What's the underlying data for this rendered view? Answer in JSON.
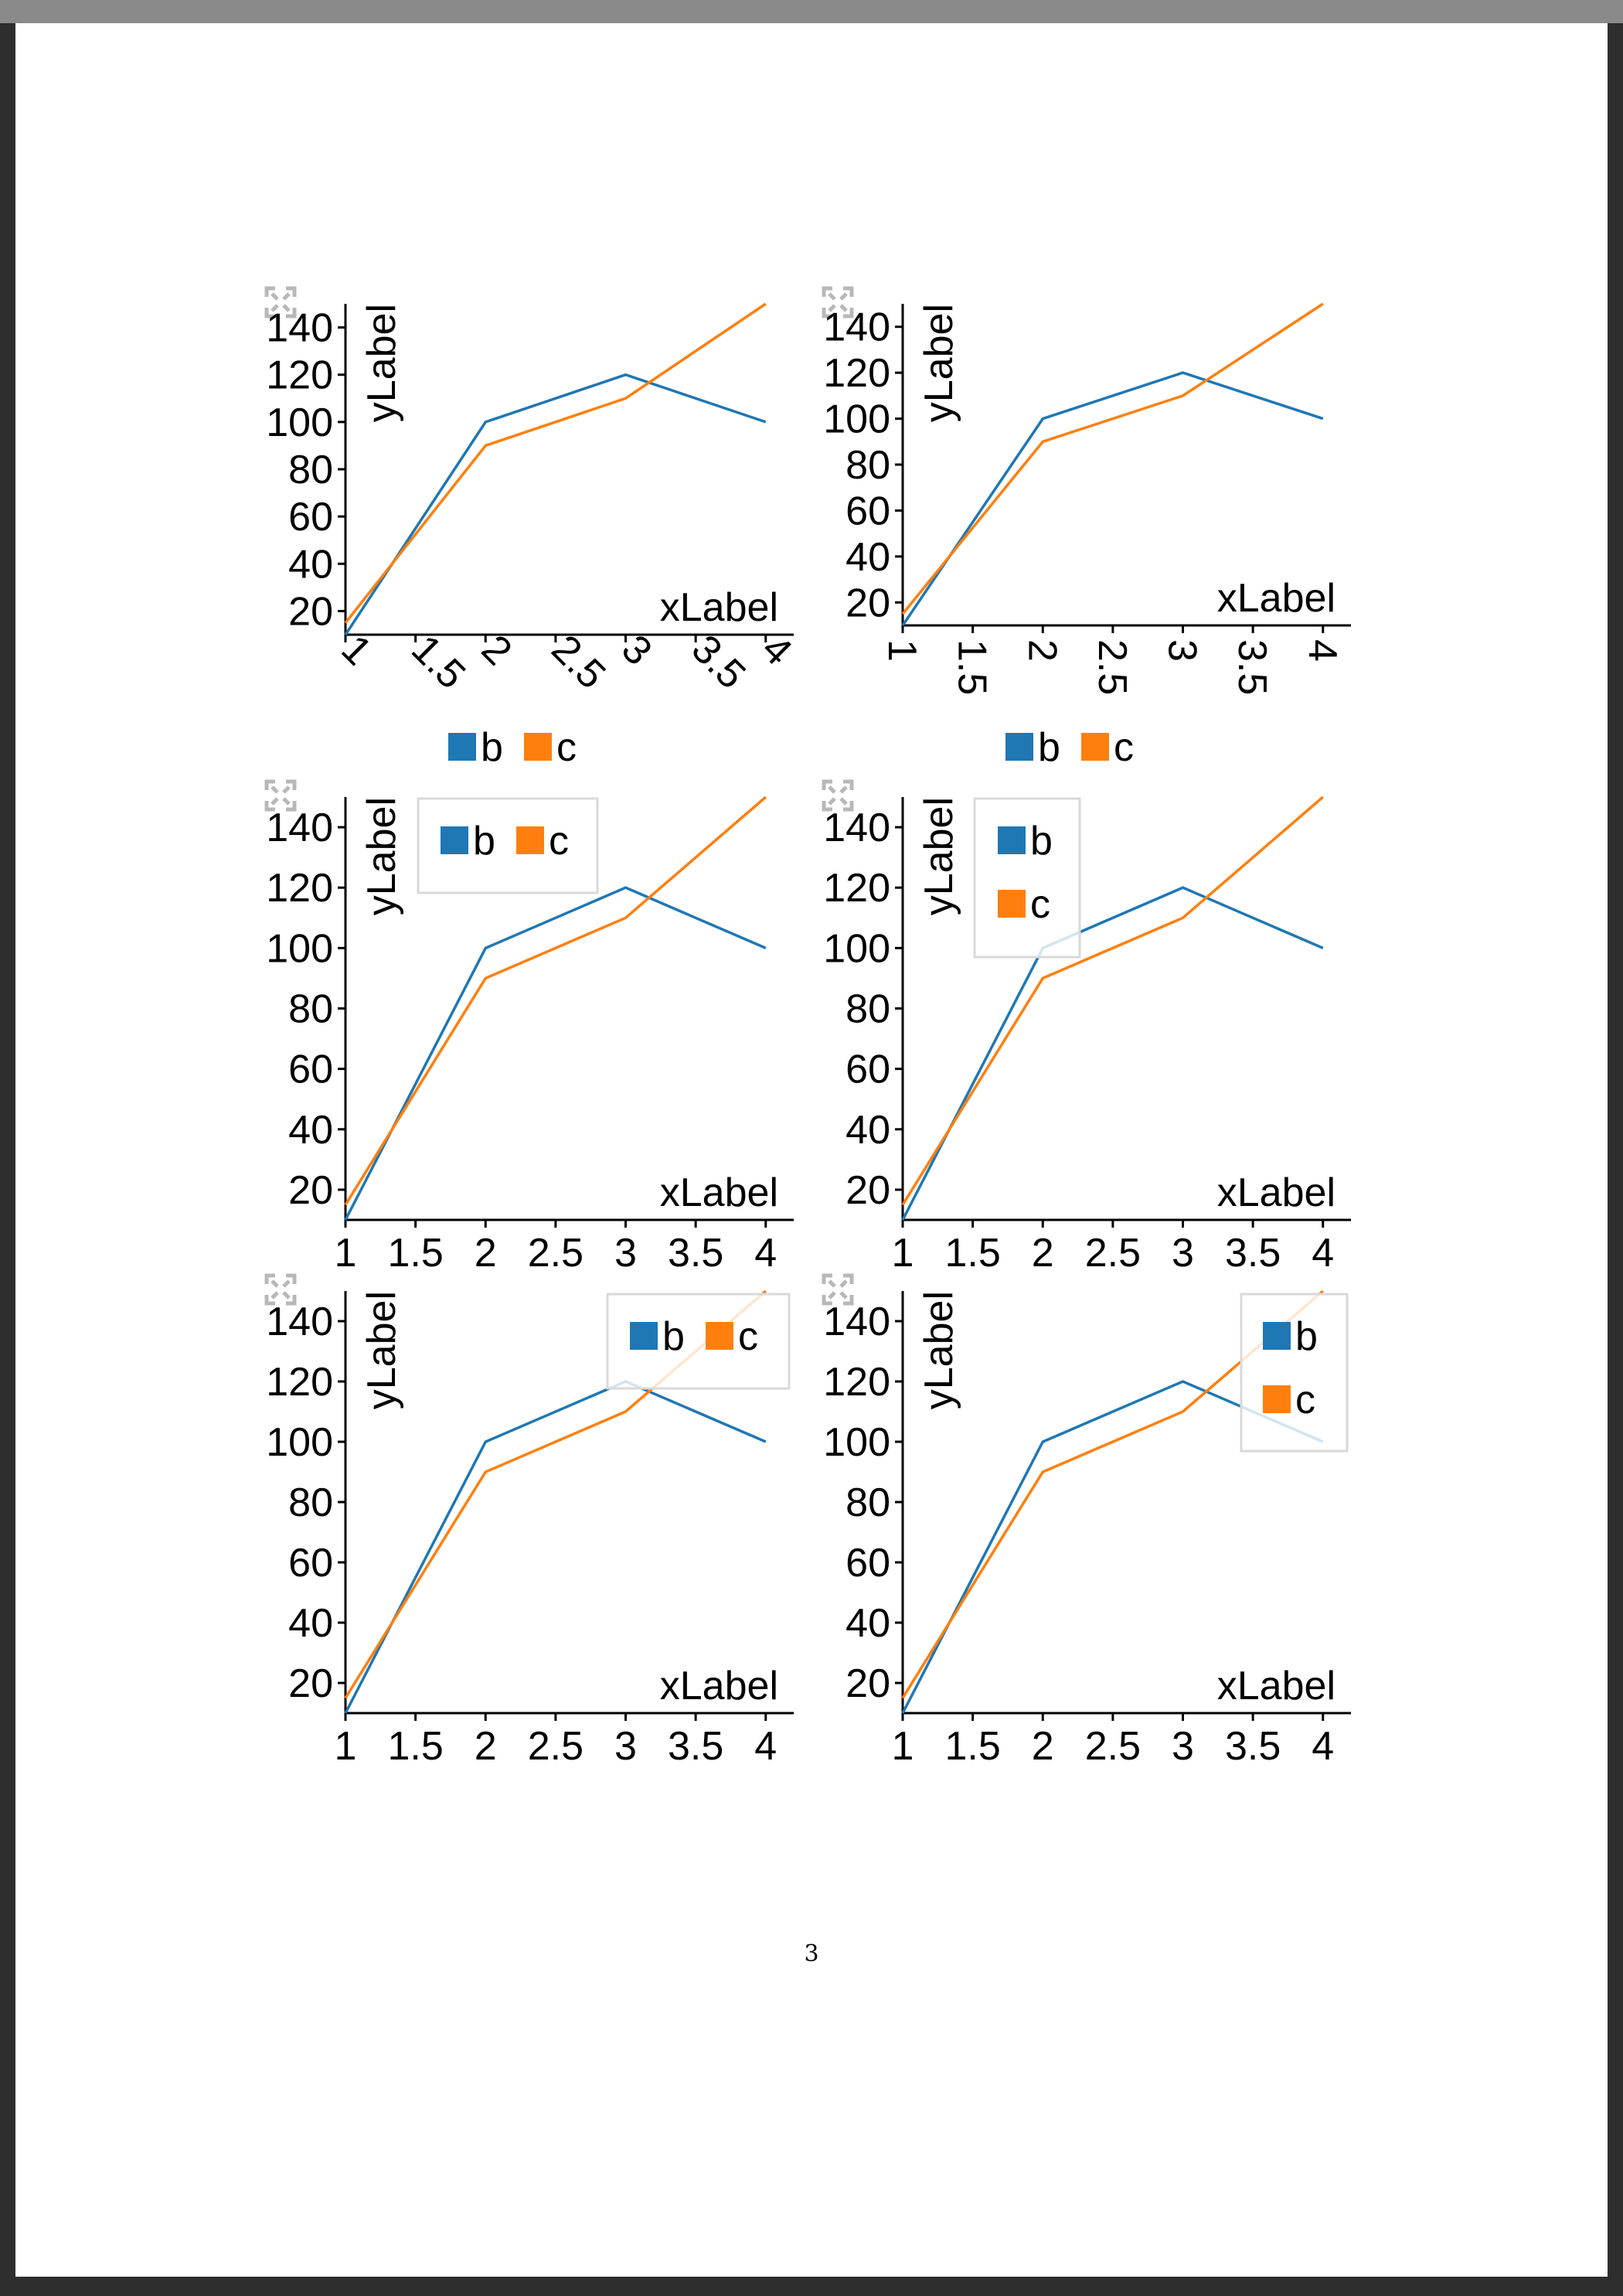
{
  "page": {
    "number": "3"
  },
  "colors": {
    "b": "#1f77b4",
    "c": "#ff7f0e",
    "legend_border": "#d9d9d9",
    "expand_icon": "#b8b8b8"
  },
  "chart_data": [
    {
      "type": "line",
      "xlabel": "xLabel",
      "ylabel": "yLabel",
      "x": [
        1,
        2,
        3,
        4
      ],
      "series": [
        {
          "name": "b",
          "values": [
            10,
            100,
            120,
            100
          ]
        },
        {
          "name": "c",
          "values": [
            15,
            90,
            110,
            150
          ]
        }
      ],
      "xticks": [
        "1",
        "1.5",
        "2",
        "2.5",
        "3",
        "3.5",
        "4"
      ],
      "yticks": [
        "20",
        "40",
        "60",
        "80",
        "100",
        "120",
        "140"
      ],
      "xlim": [
        1,
        4.2
      ],
      "ylim": [
        10,
        150
      ],
      "xtick_rotation": 45,
      "legend": "below-horizontal",
      "grid": false
    },
    {
      "type": "line",
      "xlabel": "xLabel",
      "ylabel": "yLabel",
      "x": [
        1,
        2,
        3,
        4
      ],
      "series": [
        {
          "name": "b",
          "values": [
            10,
            100,
            120,
            100
          ]
        },
        {
          "name": "c",
          "values": [
            15,
            90,
            110,
            150
          ]
        }
      ],
      "xticks": [
        "1",
        "1.5",
        "2",
        "2.5",
        "3",
        "3.5",
        "4"
      ],
      "yticks": [
        "20",
        "40",
        "60",
        "80",
        "100",
        "120",
        "140"
      ],
      "xlim": [
        1,
        4.2
      ],
      "ylim": [
        10,
        150
      ],
      "xtick_rotation": 90,
      "legend": "below-horizontal",
      "grid": false
    },
    {
      "type": "line",
      "xlabel": "xLabel",
      "ylabel": "yLabel",
      "x": [
        1,
        2,
        3,
        4
      ],
      "series": [
        {
          "name": "b",
          "values": [
            10,
            100,
            120,
            100
          ]
        },
        {
          "name": "c",
          "values": [
            15,
            90,
            110,
            150
          ]
        }
      ],
      "xticks": [
        "1",
        "1.5",
        "2",
        "2.5",
        "3",
        "3.5",
        "4"
      ],
      "yticks": [
        "20",
        "40",
        "60",
        "80",
        "100",
        "120",
        "140"
      ],
      "xlim": [
        1,
        4.2
      ],
      "ylim": [
        10,
        150
      ],
      "xtick_rotation": 0,
      "legend": "top-left-horizontal",
      "grid": false
    },
    {
      "type": "line",
      "xlabel": "xLabel",
      "ylabel": "yLabel",
      "x": [
        1,
        2,
        3,
        4
      ],
      "series": [
        {
          "name": "b",
          "values": [
            10,
            100,
            120,
            100
          ]
        },
        {
          "name": "c",
          "values": [
            15,
            90,
            110,
            150
          ]
        }
      ],
      "xticks": [
        "1",
        "1.5",
        "2",
        "2.5",
        "3",
        "3.5",
        "4"
      ],
      "yticks": [
        "20",
        "40",
        "60",
        "80",
        "100",
        "120",
        "140"
      ],
      "xlim": [
        1,
        4.2
      ],
      "ylim": [
        10,
        150
      ],
      "xtick_rotation": 0,
      "legend": "top-left-vertical",
      "grid": false
    },
    {
      "type": "line",
      "xlabel": "xLabel",
      "ylabel": "yLabel",
      "x": [
        1,
        2,
        3,
        4
      ],
      "series": [
        {
          "name": "b",
          "values": [
            10,
            100,
            120,
            100
          ]
        },
        {
          "name": "c",
          "values": [
            15,
            90,
            110,
            150
          ]
        }
      ],
      "xticks": [
        "1",
        "1.5",
        "2",
        "2.5",
        "3",
        "3.5",
        "4"
      ],
      "yticks": [
        "20",
        "40",
        "60",
        "80",
        "100",
        "120",
        "140"
      ],
      "xlim": [
        1,
        4.2
      ],
      "ylim": [
        10,
        150
      ],
      "xtick_rotation": 0,
      "legend": "top-right-horizontal",
      "grid": false
    },
    {
      "type": "line",
      "xlabel": "xLabel",
      "ylabel": "yLabel",
      "x": [
        1,
        2,
        3,
        4
      ],
      "series": [
        {
          "name": "b",
          "values": [
            10,
            100,
            120,
            100
          ]
        },
        {
          "name": "c",
          "values": [
            15,
            90,
            110,
            150
          ]
        }
      ],
      "xticks": [
        "1",
        "1.5",
        "2",
        "2.5",
        "3",
        "3.5",
        "4"
      ],
      "yticks": [
        "20",
        "40",
        "60",
        "80",
        "100",
        "120",
        "140"
      ],
      "xlim": [
        1,
        4.2
      ],
      "ylim": [
        10,
        150
      ],
      "xtick_rotation": 0,
      "legend": "top-right-vertical",
      "grid": false
    }
  ]
}
